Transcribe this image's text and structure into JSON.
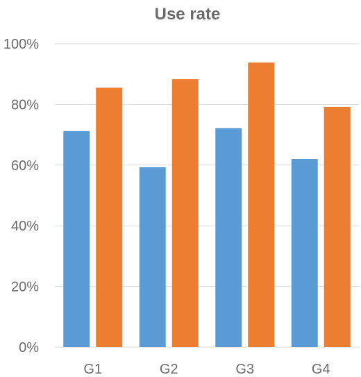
{
  "chart_data": {
    "type": "bar",
    "title": "Use rate",
    "xlabel": "",
    "ylabel": "",
    "categories": [
      "G1",
      "G2",
      "G3",
      "G4"
    ],
    "series": [
      {
        "color": "#5b9bd5",
        "values": [
          0.712,
          0.593,
          0.722,
          0.62
        ]
      },
      {
        "color": "#ed7d31",
        "values": [
          0.855,
          0.883,
          0.938,
          0.792
        ]
      }
    ],
    "ylim": [
      0,
      1
    ],
    "yticks": [
      0,
      0.2,
      0.4,
      0.6,
      0.8,
      1.0
    ],
    "ytick_labels": [
      "0%",
      "20%",
      "40%",
      "60%",
      "80%",
      "100%"
    ],
    "grid": true,
    "legend": "none"
  }
}
